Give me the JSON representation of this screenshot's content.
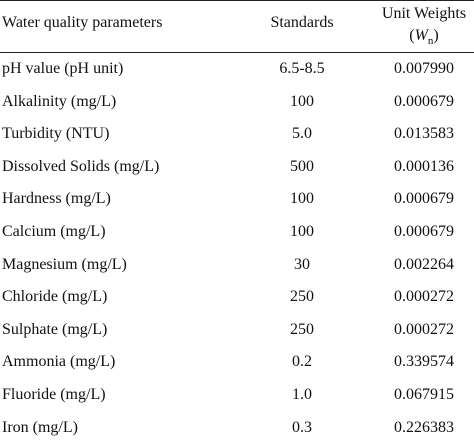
{
  "table": {
    "header": [
      "Water quality parameters",
      "Standards",
      {
        "label": "Unit Weights",
        "symbol_prefix": "(",
        "symbol": "W",
        "subscript": "n",
        "symbol_suffix": ")"
      }
    ],
    "rows": [
      [
        "pH value (pH unit)",
        "6.5-8.5",
        "0.007990"
      ],
      [
        "Alkalinity (mg/L)",
        "100",
        "0.000679"
      ],
      [
        "Turbidity (NTU)",
        "5.0",
        "0.013583"
      ],
      [
        "Dissolved Solids (mg/L)",
        "500",
        "0.000136"
      ],
      [
        "Hardness (mg/L)",
        "100",
        "0.000679"
      ],
      [
        "Calcium (mg/L)",
        "100",
        "0.000679"
      ],
      [
        "Magnesium (mg/L)",
        "30",
        "0.002264"
      ],
      [
        "Chloride (mg/L)",
        "250",
        "0.000272"
      ],
      [
        "Sulphate (mg/L)",
        "250",
        "0.000272"
      ],
      [
        "Ammonia (mg/L)",
        "0.2",
        "0.339574"
      ],
      [
        "Fluoride (mg/L)",
        "1.0",
        "0.067915"
      ],
      [
        "Iron (mg/L)",
        "0.3",
        "0.226383"
      ]
    ]
  }
}
